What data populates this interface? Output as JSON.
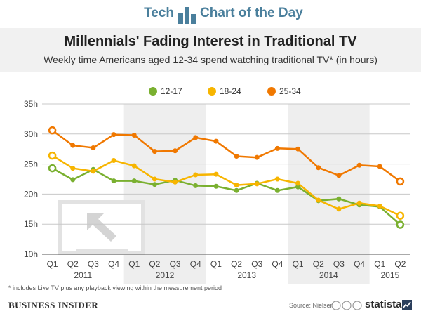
{
  "header": {
    "left": "Tech",
    "right": "Chart of the Day",
    "logo_color": "#4a7f9c"
  },
  "title": "Millennials' Fading Interest in Traditional TV",
  "subtitle": "Weekly time Americans aged 12-34 spend watching traditional TV* (in hours)",
  "chart_data": {
    "type": "line",
    "title": "Millennials' Fading Interest in Traditional TV",
    "subtitle": "Weekly time Americans aged 12-34 spend watching traditional TV* (in hours)",
    "categories": [
      "Q1",
      "Q2",
      "Q3",
      "Q4",
      "Q1",
      "Q2",
      "Q3",
      "Q4",
      "Q1",
      "Q2",
      "Q3",
      "Q4",
      "Q1",
      "Q2",
      "Q3",
      "Q4",
      "Q1",
      "Q2"
    ],
    "year_groups": [
      {
        "label": "2011",
        "start": 0,
        "end": 3
      },
      {
        "label": "2012",
        "start": 4,
        "end": 7
      },
      {
        "label": "2013",
        "start": 8,
        "end": 11
      },
      {
        "label": "2014",
        "start": 12,
        "end": 15
      },
      {
        "label": "2015",
        "start": 16,
        "end": 17
      }
    ],
    "series": [
      {
        "name": "12-17",
        "color": "#7ab030",
        "values": [
          24.3,
          22.4,
          24.1,
          22.2,
          22.2,
          21.6,
          22.3,
          21.4,
          21.3,
          20.6,
          21.8,
          20.6,
          21.2,
          18.9,
          19.2,
          18.2,
          17.9,
          14.9
        ]
      },
      {
        "name": "18-24",
        "color": "#f7b500",
        "values": [
          26.4,
          24.3,
          23.8,
          25.6,
          24.7,
          22.5,
          22.0,
          23.2,
          23.3,
          21.5,
          21.7,
          22.5,
          21.8,
          19.0,
          17.5,
          18.5,
          18.0,
          16.4
        ]
      },
      {
        "name": "25-34",
        "color": "#f07800",
        "values": [
          30.6,
          28.1,
          27.7,
          29.9,
          29.8,
          27.1,
          27.2,
          29.4,
          28.8,
          26.3,
          26.1,
          27.6,
          27.5,
          24.4,
          23.1,
          24.8,
          24.6,
          22.1
        ]
      }
    ],
    "y_ticks": [
      "10h",
      "15h",
      "20h",
      "25h",
      "30h",
      "35h"
    ],
    "ylim": [
      10,
      35
    ],
    "legend": "top-center",
    "grid": true
  },
  "footnote": "* includes Live TV plus any playback viewing within the measurement period",
  "footer": {
    "publisher": "BUSINESS INSIDER",
    "source": "Source: Nielsen",
    "brand": "statista"
  }
}
